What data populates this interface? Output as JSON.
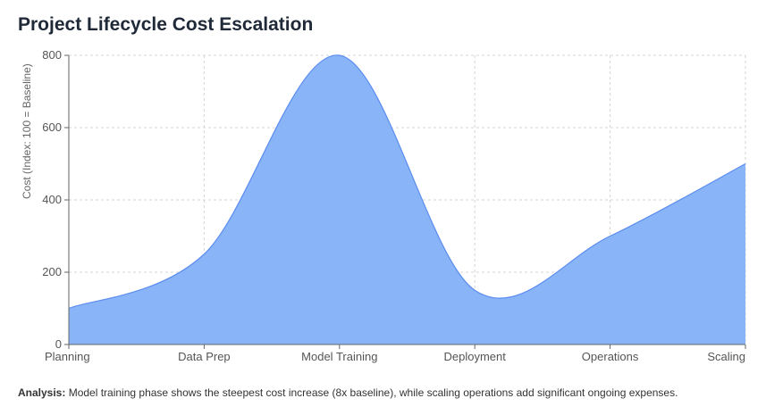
{
  "chart_data": {
    "type": "area",
    "title": "Project Lifecycle Cost Escalation",
    "xlabel": "",
    "ylabel": "Cost (Index: 100 = Baseline)",
    "categories": [
      "Planning",
      "Data Prep",
      "Model Training",
      "Deployment",
      "Operations",
      "Scaling"
    ],
    "series": [
      {
        "values": [
          100,
          250,
          800,
          150,
          300,
          500
        ]
      }
    ],
    "yticks": [
      0,
      200,
      400,
      600,
      800
    ],
    "ylim": [
      0,
      800
    ],
    "grid": true,
    "legend": "none",
    "fill_color": "#8ab4f8",
    "line_color": "#5b8def"
  },
  "analysis": {
    "label": "Analysis:",
    "text": " Model training phase shows the steepest cost increase (8x baseline), while scaling operations add significant ongoing expenses."
  }
}
